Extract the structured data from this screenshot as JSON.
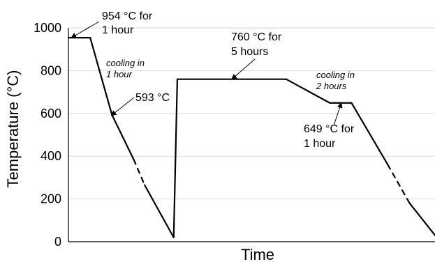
{
  "chart_data": {
    "type": "line",
    "xlabel": "Time",
    "ylabel": "Temperature (°C)",
    "ylim": [
      0,
      1000
    ],
    "yticks": [
      "0",
      "200",
      "400",
      "600",
      "800",
      "1000"
    ],
    "grid": true,
    "legend": "none",
    "series": [
      {
        "points": [
          [
            0,
            954
          ],
          [
            60,
            954
          ],
          [
            120,
            593
          ],
          [
            180,
            384
          ],
          [
            210,
            265
          ],
          [
            290,
            20
          ],
          [
            300,
            760
          ],
          [
            600,
            760
          ],
          [
            720,
            649
          ],
          [
            780,
            649
          ],
          [
            880,
            360
          ],
          [
            940,
            180
          ],
          [
            1010,
            30
          ]
        ],
        "dashed_segments": [
          [
            3,
            4
          ],
          [
            10,
            11
          ]
        ]
      }
    ],
    "annotations": {
      "a954": [
        "954 °C for",
        "1 hour"
      ],
      "cool1": [
        "cooling in",
        "1 hour"
      ],
      "a593": [
        "593 °C"
      ],
      "a760": [
        "760 °C for",
        "5 hours"
      ],
      "cool2": [
        "cooling in",
        "2 hours"
      ],
      "a649": [
        "649 °C for",
        "1 hour"
      ]
    }
  }
}
